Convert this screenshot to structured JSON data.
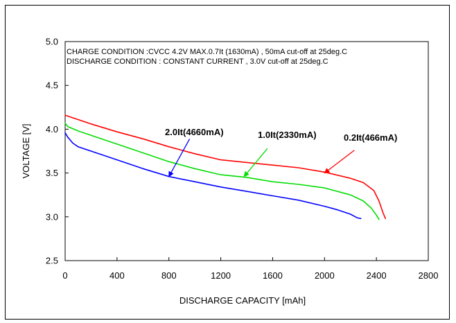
{
  "chart_data": {
    "type": "line",
    "title": "",
    "xlabel": "DISCHARGE CAPACITY  [mAh]",
    "ylabel": "VOLTAGE  [V]",
    "xlim": [
      0,
      2800
    ],
    "ylim": [
      2.5,
      5.0
    ],
    "xticks": [
      "0",
      "400",
      "800",
      "1200",
      "1600",
      "2000",
      "2400",
      "2800"
    ],
    "yticks": [
      "2.5",
      "3.0",
      "3.5",
      "4.0",
      "4.5",
      "5.0"
    ],
    "grid": false,
    "annotations": [
      "CHARGE CONDITION :CVCC 4.2V MAX.0.7It (1630mA) , 50mA cut-off at  25deg.C",
      "DISCHARGE CONDITION : CONSTANT CURRENT , 3.0V cut-off at  25deg.C"
    ],
    "series": [
      {
        "name": "0.2It(466mA)",
        "color": "#ff0000",
        "x": [
          0,
          100,
          200,
          400,
          600,
          800,
          1000,
          1200,
          1400,
          1600,
          1800,
          2000,
          2200,
          2300,
          2380,
          2420,
          2450,
          2470
        ],
        "y": [
          4.16,
          4.11,
          4.06,
          3.97,
          3.89,
          3.8,
          3.72,
          3.65,
          3.62,
          3.59,
          3.56,
          3.51,
          3.44,
          3.39,
          3.3,
          3.18,
          3.05,
          2.98
        ]
      },
      {
        "name": "1.0It(2330mA)",
        "color": "#00dd00",
        "x": [
          0,
          20,
          100,
          200,
          400,
          600,
          800,
          1000,
          1200,
          1400,
          1600,
          1800,
          2000,
          2200,
          2300,
          2360,
          2400,
          2420
        ],
        "y": [
          4.07,
          4.03,
          3.98,
          3.93,
          3.83,
          3.73,
          3.63,
          3.55,
          3.48,
          3.45,
          3.4,
          3.37,
          3.33,
          3.25,
          3.18,
          3.1,
          3.02,
          2.97
        ]
      },
      {
        "name": "2.0It(4660mA)",
        "color": "#0000ff",
        "x": [
          0,
          20,
          60,
          100,
          200,
          400,
          600,
          800,
          1000,
          1200,
          1400,
          1600,
          1800,
          2000,
          2100,
          2200,
          2250,
          2280
        ],
        "y": [
          3.96,
          3.91,
          3.84,
          3.8,
          3.75,
          3.65,
          3.55,
          3.46,
          3.4,
          3.34,
          3.29,
          3.24,
          3.19,
          3.12,
          3.08,
          3.03,
          2.99,
          2.98
        ]
      }
    ],
    "labels": [
      {
        "text": "2.0It(4660mA)",
        "series": 2,
        "pointer_from": [
          960,
          3.89
        ],
        "pointer_to": [
          800,
          3.46
        ]
      },
      {
        "text": "1.0It(2330mA)",
        "series": 1,
        "pointer_from": [
          1560,
          3.78
        ],
        "pointer_to": [
          1380,
          3.46
        ]
      },
      {
        "text": "0.2It(466mA)",
        "series": 0,
        "pointer_from": [
          2230,
          3.76
        ],
        "pointer_to": [
          2000,
          3.5
        ]
      }
    ]
  }
}
